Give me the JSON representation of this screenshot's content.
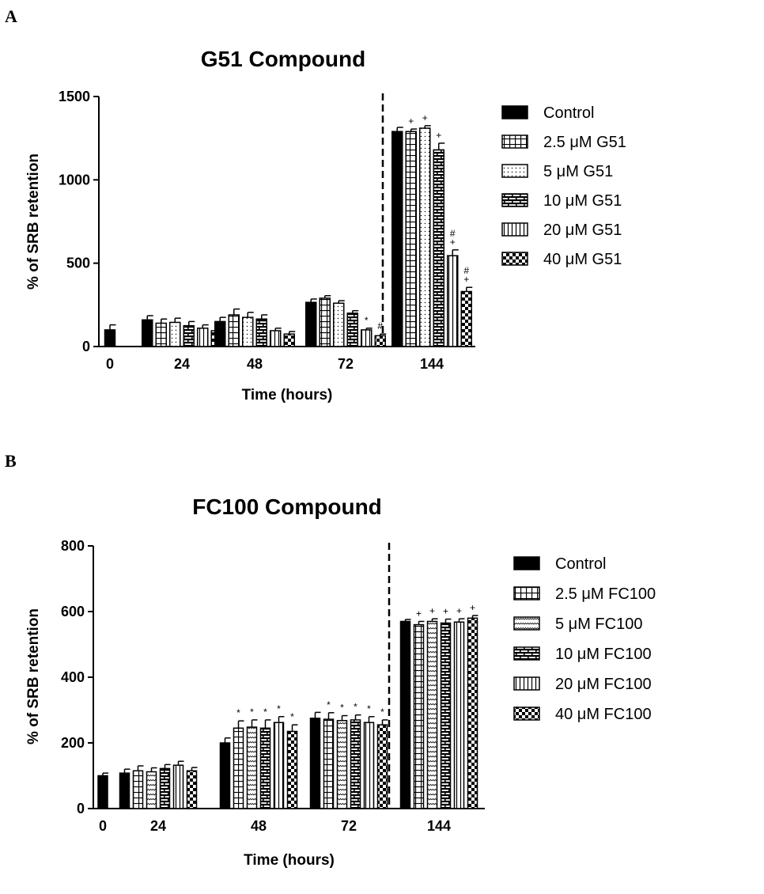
{
  "panels": [
    {
      "letter": "A"
    },
    {
      "letter": "B"
    }
  ],
  "chart_data": [
    {
      "type": "bar",
      "title": "G51  Compound",
      "xlabel": "Time (hours)",
      "ylabel": "% of SRB retention",
      "ylim": [
        0,
        1500
      ],
      "yticks": [
        "0",
        "500",
        "1000",
        "1500"
      ],
      "categories": [
        "0",
        "24",
        "48",
        "72",
        "144"
      ],
      "series": [
        {
          "name": "Control",
          "pattern": "solid",
          "values": [
            100,
            160,
            150,
            265,
            1290
          ],
          "errors": [
            30,
            25,
            25,
            20,
            25
          ],
          "marks": [
            "",
            "",
            "",
            "",
            ""
          ]
        },
        {
          "name": "2.5 μM G51",
          "pattern": "grid",
          "values": [
            null,
            140,
            190,
            290,
            1290
          ],
          "errors": [
            null,
            25,
            35,
            15,
            15
          ],
          "marks": [
            "",
            "",
            "",
            "",
            "+"
          ]
        },
        {
          "name": "5 μM G51",
          "pattern": "dots",
          "values": [
            null,
            145,
            175,
            260,
            1310
          ],
          "errors": [
            null,
            25,
            30,
            15,
            15
          ],
          "marks": [
            "",
            "",
            "",
            "",
            "+"
          ]
        },
        {
          "name": "10 μM G51",
          "pattern": "brick",
          "values": [
            null,
            125,
            165,
            200,
            1180
          ],
          "errors": [
            null,
            25,
            25,
            15,
            40
          ],
          "marks": [
            "",
            "",
            "",
            "",
            "+"
          ]
        },
        {
          "name": "20 μM G51",
          "pattern": "vlines",
          "values": [
            null,
            110,
            95,
            100,
            545
          ],
          "errors": [
            null,
            20,
            15,
            10,
            35
          ],
          "marks": [
            "",
            "",
            "",
            "*",
            "#\n+"
          ]
        },
        {
          "name": "40 μM G51",
          "pattern": "checker",
          "values": [
            null,
            95,
            75,
            65,
            330
          ],
          "errors": [
            null,
            20,
            15,
            10,
            25
          ],
          "marks": [
            "",
            "",
            "",
            "#",
            "#\n+"
          ]
        }
      ],
      "legend": "right"
    },
    {
      "type": "bar",
      "title": "FC100 Compound",
      "xlabel": "Time (hours)",
      "ylabel": "% of SRB retention",
      "ylim": [
        0,
        800
      ],
      "yticks": [
        "0",
        "200",
        "400",
        "600",
        "800"
      ],
      "categories": [
        "0",
        "24",
        "48",
        "72",
        "144"
      ],
      "series": [
        {
          "name": "Control",
          "pattern": "solid",
          "values": [
            100,
            108,
            200,
            275,
            570
          ],
          "errors": [
            8,
            12,
            15,
            18,
            6
          ],
          "marks": [
            "",
            "",
            "",
            "",
            ""
          ]
        },
        {
          "name": "2.5 μM FC100",
          "pattern": "grid",
          "values": [
            null,
            115,
            245,
            272,
            560
          ],
          "errors": [
            null,
            15,
            22,
            20,
            10
          ],
          "marks": [
            "",
            "",
            "*",
            "*",
            "+"
          ]
        },
        {
          "name": "5 μM FC100",
          "pattern": "zigzag",
          "values": [
            null,
            112,
            248,
            268,
            570
          ],
          "errors": [
            null,
            12,
            22,
            15,
            8
          ],
          "marks": [
            "",
            "",
            "*",
            "*",
            "+"
          ]
        },
        {
          "name": "10 μM FC100",
          "pattern": "brick",
          "values": [
            null,
            122,
            245,
            270,
            565
          ],
          "errors": [
            null,
            12,
            25,
            15,
            12
          ],
          "marks": [
            "",
            "",
            "*",
            "*",
            "+"
          ]
        },
        {
          "name": "20 μM FC100",
          "pattern": "vlines",
          "values": [
            null,
            132,
            262,
            262,
            568
          ],
          "errors": [
            null,
            12,
            18,
            18,
            10
          ],
          "marks": [
            "",
            "",
            "*",
            "*",
            "+"
          ]
        },
        {
          "name": "40 μM FC100",
          "pattern": "checker",
          "values": [
            null,
            115,
            235,
            255,
            580
          ],
          "errors": [
            null,
            10,
            20,
            15,
            8
          ],
          "marks": [
            "",
            "",
            "*",
            "*",
            "+"
          ]
        }
      ],
      "legend": "right"
    }
  ]
}
